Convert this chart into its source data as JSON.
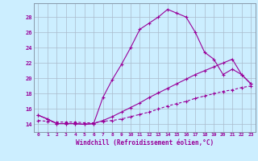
{
  "xlabel": "Windchill (Refroidissement éolien,°C)",
  "bg_color": "#cceeff",
  "grid_color": "#aabbcc",
  "line_color": "#990099",
  "x_ticks": [
    0,
    1,
    2,
    3,
    4,
    5,
    6,
    7,
    8,
    9,
    10,
    11,
    12,
    13,
    14,
    15,
    16,
    17,
    18,
    19,
    20,
    21,
    22,
    23
  ],
  "y_ticks": [
    14,
    16,
    18,
    20,
    22,
    24,
    26,
    28
  ],
  "ylim": [
    13.0,
    29.8
  ],
  "xlim": [
    -0.5,
    23.5
  ],
  "line1_x": [
    0,
    1,
    2,
    3,
    4,
    5,
    6,
    7,
    8,
    9,
    10,
    11,
    12,
    13,
    14,
    15,
    16,
    17,
    18,
    19,
    20,
    21,
    22,
    23
  ],
  "line1_y": [
    15.2,
    14.7,
    14.1,
    14.1,
    14.1,
    14.0,
    14.1,
    17.5,
    19.8,
    21.8,
    24.0,
    26.4,
    27.2,
    28.0,
    29.0,
    28.5,
    28.0,
    26.0,
    23.4,
    22.5,
    20.5,
    21.2,
    20.5,
    19.3
  ],
  "line2_x": [
    0,
    1,
    2,
    3,
    4,
    5,
    6,
    7,
    8,
    9,
    10,
    11,
    12,
    13,
    14,
    15,
    16,
    17,
    18,
    19,
    20,
    21,
    22,
    23
  ],
  "line2_y": [
    14.5,
    14.4,
    14.3,
    14.3,
    14.3,
    14.2,
    14.2,
    14.4,
    14.5,
    14.7,
    15.0,
    15.3,
    15.6,
    16.0,
    16.4,
    16.7,
    17.0,
    17.4,
    17.7,
    18.0,
    18.3,
    18.5,
    18.8,
    19.0
  ],
  "line3_x": [
    0,
    1,
    2,
    3,
    4,
    5,
    6,
    7,
    8,
    9,
    10,
    11,
    12,
    13,
    14,
    15,
    16,
    17,
    18,
    19,
    20,
    21,
    22,
    23
  ],
  "line3_y": [
    15.2,
    14.7,
    14.1,
    14.1,
    14.1,
    14.0,
    14.1,
    14.5,
    15.0,
    15.6,
    16.2,
    16.8,
    17.5,
    18.1,
    18.7,
    19.3,
    19.9,
    20.5,
    21.0,
    21.5,
    22.0,
    22.5,
    20.5,
    19.3
  ]
}
